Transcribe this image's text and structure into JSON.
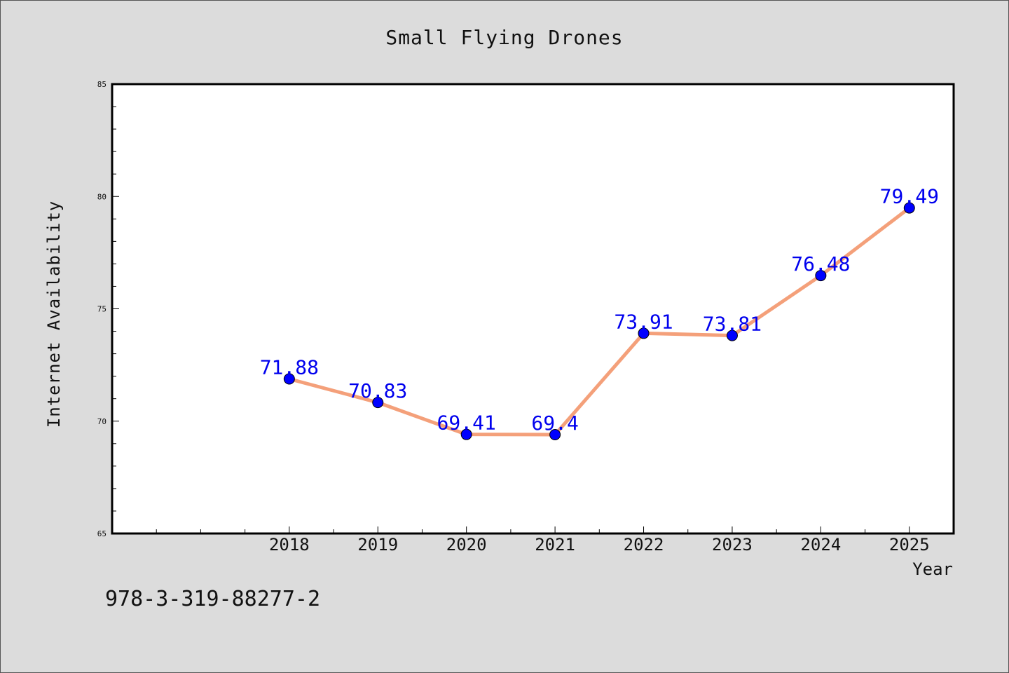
{
  "chart_data": {
    "type": "line",
    "title": "Small Flying Drones",
    "xlabel": "Year",
    "ylabel": "Internet Availability",
    "x": [
      2018,
      2019,
      2020,
      2021,
      2022,
      2023,
      2024,
      2025
    ],
    "xlim": [
      2016,
      2025.5
    ],
    "ylim": [
      65,
      85
    ],
    "yticks": [
      65,
      70,
      75,
      80,
      85
    ],
    "series": [
      {
        "values": [
          71.88,
          70.83,
          69.41,
          69.4,
          73.91,
          73.81,
          76.48,
          79.49
        ],
        "labels": [
          "71.88",
          "70.83",
          "69.41",
          "69.4",
          "73.91",
          "73.81",
          "76.48",
          "79.49"
        ]
      }
    ],
    "grid": false,
    "colors": {
      "line": "#f4a07a",
      "marker": "#0000ff",
      "label": "#0000ee"
    }
  },
  "footnote": "978-3-319-88277-2"
}
